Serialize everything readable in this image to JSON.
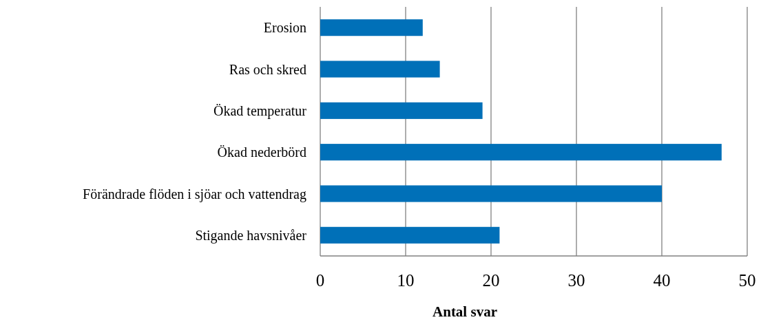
{
  "chart_data": {
    "type": "bar",
    "orientation": "horizontal",
    "xlabel": "Antal svar",
    "categories": [
      "Erosion",
      "Ras och skred",
      "Ökad temperatur",
      "Ökad nederbörd",
      "Förändrade flöden i sjöar och vattendrag",
      "Stigande havsnivåer"
    ],
    "values": [
      12,
      14,
      19,
      47,
      40,
      21
    ],
    "color": "#0070b8",
    "xlim": [
      0,
      50
    ],
    "xticks": [
      0,
      10,
      20,
      30,
      40,
      50
    ],
    "grid": "x"
  }
}
